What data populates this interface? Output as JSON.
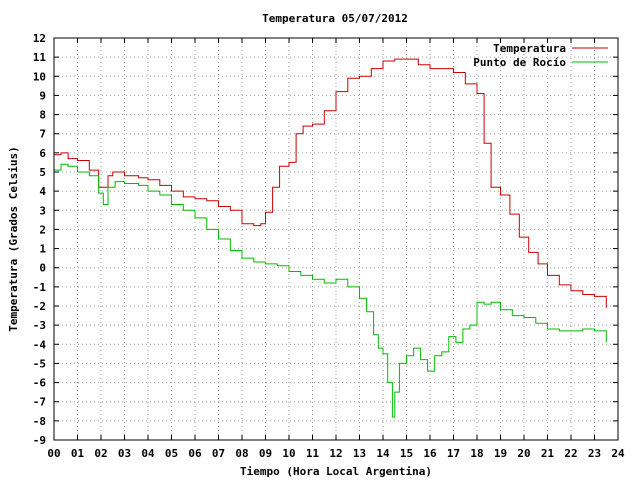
{
  "chart_data": {
    "type": "line",
    "title": "Temperatura 05/07/2012",
    "xlabel": "Tiempo (Hora Local Argentina)",
    "ylabel": "Temperatura (Grados Celsius)",
    "xlim": [
      0,
      24
    ],
    "ylim": [
      -9,
      12
    ],
    "xticks": [
      0,
      1,
      2,
      3,
      4,
      5,
      6,
      7,
      8,
      9,
      10,
      11,
      12,
      13,
      14,
      15,
      16,
      17,
      18,
      19,
      20,
      21,
      22,
      23,
      24
    ],
    "xtick_labels": [
      "00",
      "01",
      "02",
      "03",
      "04",
      "05",
      "06",
      "07",
      "08",
      "09",
      "10",
      "11",
      "12",
      "13",
      "14",
      "15",
      "16",
      "17",
      "18",
      "19",
      "20",
      "21",
      "22",
      "23",
      "24"
    ],
    "yticks": [
      12,
      11,
      10,
      9,
      8,
      7,
      6,
      5,
      4,
      3,
      2,
      1,
      0,
      -1,
      -2,
      -3,
      -4,
      -5,
      -6,
      -7,
      -8,
      -9
    ],
    "grid": true,
    "legend_position": "top-right",
    "series": [
      {
        "name": "Temperatura",
        "color": "#cc0000",
        "x": [
          0.0,
          0.3,
          0.6,
          1.0,
          1.5,
          1.9,
          2.1,
          2.3,
          2.5,
          3.0,
          3.6,
          4.0,
          4.5,
          5.0,
          5.5,
          6.0,
          6.5,
          7.0,
          7.5,
          8.0,
          8.5,
          8.8,
          9.0,
          9.3,
          9.6,
          10.0,
          10.3,
          10.6,
          11.0,
          11.5,
          12.0,
          12.5,
          13.0,
          13.5,
          14.0,
          14.5,
          15.0,
          15.5,
          16.0,
          16.5,
          17.0,
          17.5,
          18.0,
          18.3,
          18.6,
          19.0,
          19.4,
          19.8,
          20.2,
          20.6,
          21.0,
          21.5,
          22.0,
          22.5,
          23.0,
          23.5
        ],
        "y": [
          5.9,
          6.0,
          5.7,
          5.6,
          5.1,
          4.2,
          4.2,
          4.8,
          5.0,
          4.8,
          4.7,
          4.6,
          4.3,
          4.0,
          3.7,
          3.6,
          3.5,
          3.2,
          3.0,
          2.3,
          2.2,
          2.3,
          2.9,
          4.2,
          5.3,
          5.5,
          7.0,
          7.4,
          7.5,
          8.2,
          9.2,
          9.9,
          10.0,
          10.4,
          10.8,
          10.9,
          10.9,
          10.6,
          10.4,
          10.4,
          10.2,
          9.6,
          9.1,
          6.5,
          4.2,
          3.8,
          2.8,
          1.6,
          0.8,
          0.2,
          -0.4,
          -0.9,
          -1.2,
          -1.4,
          -1.5,
          -2.1
        ]
      },
      {
        "name": "Punto de Rocío",
        "color": "#00bb00",
        "x": [
          0.0,
          0.3,
          0.6,
          1.0,
          1.5,
          1.9,
          2.1,
          2.3,
          2.6,
          3.0,
          3.6,
          4.0,
          4.5,
          5.0,
          5.5,
          6.0,
          6.5,
          7.0,
          7.5,
          8.0,
          8.5,
          9.0,
          9.5,
          10.0,
          10.5,
          11.0,
          11.5,
          12.0,
          12.5,
          13.0,
          13.3,
          13.6,
          13.8,
          14.0,
          14.2,
          14.4,
          14.5,
          14.7,
          15.0,
          15.3,
          15.6,
          15.9,
          16.2,
          16.5,
          16.8,
          17.1,
          17.4,
          17.7,
          18.0,
          18.3,
          18.6,
          19.0,
          19.5,
          20.0,
          20.5,
          21.0,
          21.5,
          22.0,
          22.5,
          23.0,
          23.5
        ],
        "y": [
          5.1,
          5.4,
          5.3,
          5.0,
          4.8,
          3.9,
          3.3,
          4.2,
          4.5,
          4.4,
          4.3,
          4.0,
          3.8,
          3.3,
          3.0,
          2.6,
          2.0,
          1.5,
          0.9,
          0.5,
          0.3,
          0.2,
          0.1,
          -0.2,
          -0.4,
          -0.6,
          -0.8,
          -0.6,
          -1.0,
          -1.6,
          -2.3,
          -3.5,
          -4.2,
          -4.5,
          -6.0,
          -7.8,
          -6.5,
          -5.0,
          -4.6,
          -4.2,
          -4.8,
          -5.4,
          -4.6,
          -4.4,
          -3.6,
          -3.9,
          -3.2,
          -3.0,
          -1.8,
          -1.9,
          -1.8,
          -2.2,
          -2.5,
          -2.6,
          -2.9,
          -3.2,
          -3.3,
          -3.3,
          -3.2,
          -3.3,
          -3.9
        ]
      }
    ]
  }
}
